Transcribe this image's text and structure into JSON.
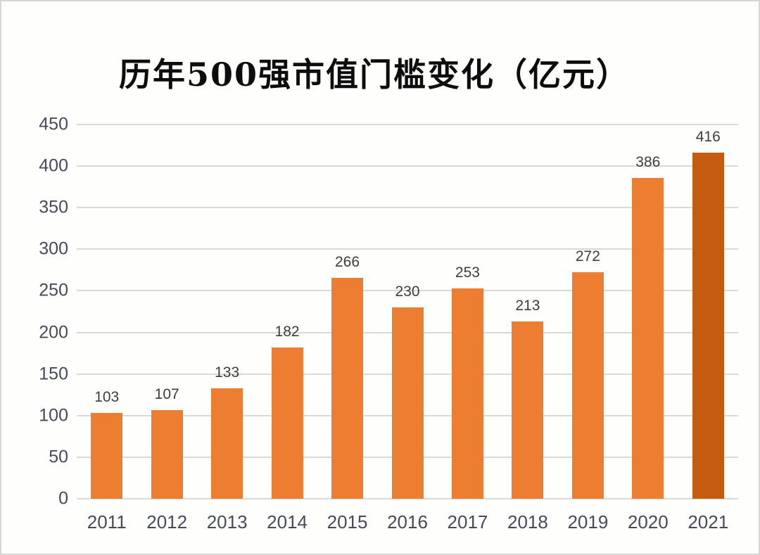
{
  "title": "历年500强市值门槛变化（亿元）",
  "chart_data": {
    "type": "bar",
    "title": "历年500强市值门槛变化（亿元）",
    "categories": [
      "2011",
      "2012",
      "2013",
      "2014",
      "2015",
      "2016",
      "2017",
      "2018",
      "2019",
      "2020",
      "2021"
    ],
    "values": [
      103,
      107,
      133,
      182,
      266,
      230,
      253,
      213,
      272,
      386,
      416
    ],
    "data_labels": [
      "103",
      "107",
      "133",
      "182",
      "266",
      "230",
      "253",
      "213",
      "272",
      "386",
      "416"
    ],
    "xlabel": "",
    "ylabel": "",
    "ylim": [
      0,
      450
    ],
    "yticks": [
      0,
      50,
      100,
      150,
      200,
      250,
      300,
      350,
      400,
      450
    ],
    "grid": true,
    "legend": false,
    "colors": {
      "bar": "#ED7D31",
      "bar_highlight": "#C55A11",
      "gridline": "#D9D9D9",
      "axis_label": "#474B59",
      "data_label": "#3D3D3D",
      "title": "#0D0D0D"
    },
    "highlight_index": 10
  }
}
